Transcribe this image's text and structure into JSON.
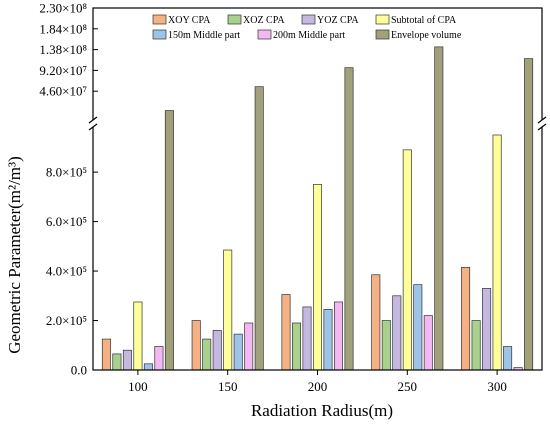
{
  "chart_data": {
    "type": "bar",
    "title": "",
    "xlabel": "Radiation Radius(m)",
    "ylabel": "Geometric Parameter(m²/m³)",
    "categories": [
      "100",
      "150",
      "200",
      "250",
      "300"
    ],
    "y_ticks_lower": [
      "0.0",
      "2.0×10⁵",
      "4.0×10⁵",
      "6.0×10⁵",
      "8.0×10⁵"
    ],
    "y_ticks_upper": [
      "4.60×10⁷",
      "9.20×10⁷",
      "1.38×10⁸",
      "1.84×10⁸",
      "2.30×10⁸"
    ],
    "y_tick_values_lower": [
      0,
      200000,
      400000,
      600000,
      800000
    ],
    "y_tick_values_upper": [
      46000000,
      92000000,
      138000000,
      184000000,
      230000000
    ],
    "lower_ylim": [
      0,
      950000
    ],
    "upper_ylim": [
      0,
      230000000
    ],
    "axis_break": true,
    "legend_position": "top",
    "series": [
      {
        "name": "XOY CPA",
        "color": "#f4b183",
        "values": [
          125000,
          200000,
          305000,
          385000,
          415000
        ]
      },
      {
        "name": "XOZ CPA",
        "color": "#a9d18e",
        "values": [
          65000,
          125000,
          190000,
          200000,
          200000
        ]
      },
      {
        "name": "YOZ CPA",
        "color": "#c5b8e0",
        "values": [
          80000,
          160000,
          255000,
          300000,
          330000
        ]
      },
      {
        "name": "Subtotal of CPA",
        "color": "#ffff99",
        "values": [
          275000,
          485000,
          750000,
          890000,
          950000
        ]
      },
      {
        "name": "150m Middle part",
        "color": "#9dc3e6",
        "values": [
          25000,
          145000,
          245000,
          345000,
          95000
        ]
      },
      {
        "name": "200m Middle part",
        "color": "#f2b8f2",
        "values": [
          95000,
          190000,
          275000,
          220000,
          10000
        ]
      },
      {
        "name": "Envelope volume",
        "color": "#a0a07a",
        "values": [
          3200000,
          56000000,
          98000000,
          144000000,
          118000000
        ]
      }
    ]
  }
}
